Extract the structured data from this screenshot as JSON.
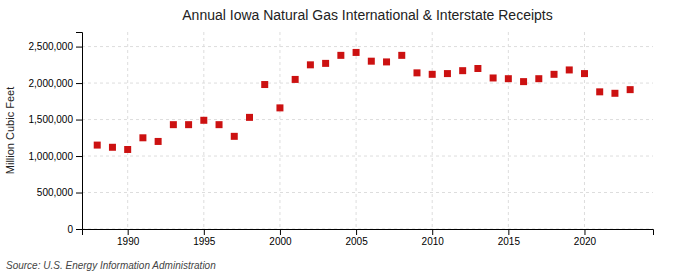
{
  "chart_data": {
    "type": "scatter",
    "title": "Annual Iowa Natural Gas International & Interstate Receipts",
    "ylabel": "Million Cubic Feet",
    "source": "Source: U.S. Energy Information Administration",
    "x": [
      1988,
      1989,
      1990,
      1991,
      1992,
      1993,
      1994,
      1995,
      1996,
      1997,
      1998,
      1999,
      2000,
      2001,
      2002,
      2003,
      2004,
      2005,
      2006,
      2007,
      2008,
      2009,
      2010,
      2011,
      2012,
      2013,
      2014,
      2015,
      2016,
      2017,
      2018,
      2019,
      2020,
      2021,
      2022,
      2023
    ],
    "values": [
      1150000,
      1120000,
      1090000,
      1250000,
      1200000,
      1430000,
      1430000,
      1490000,
      1430000,
      1270000,
      1530000,
      1980000,
      1660000,
      2050000,
      2250000,
      2270000,
      2380000,
      2420000,
      2300000,
      2290000,
      2380000,
      2140000,
      2120000,
      2130000,
      2170000,
      2200000,
      2070000,
      2060000,
      2020000,
      2060000,
      2120000,
      2180000,
      2130000,
      1880000,
      1860000,
      1910000
    ],
    "color": "#cc1111",
    "marker": "square",
    "xlim": [
      1987.0,
      2024.5
    ],
    "xticks": [
      1990,
      1995,
      2000,
      2005,
      2010,
      2015,
      2020
    ],
    "ylim": [
      0,
      2700000
    ],
    "yticks": [
      0,
      {
        "value": 500000,
        "label": "500,000"
      },
      {
        "value": 1000000,
        "label": "1,000,000"
      },
      {
        "value": 1500000,
        "label": "1,500,000"
      },
      {
        "value": 2000000,
        "label": "2,000,000"
      },
      {
        "value": 2500000,
        "label": "2,500,000"
      }
    ],
    "grid": true
  }
}
